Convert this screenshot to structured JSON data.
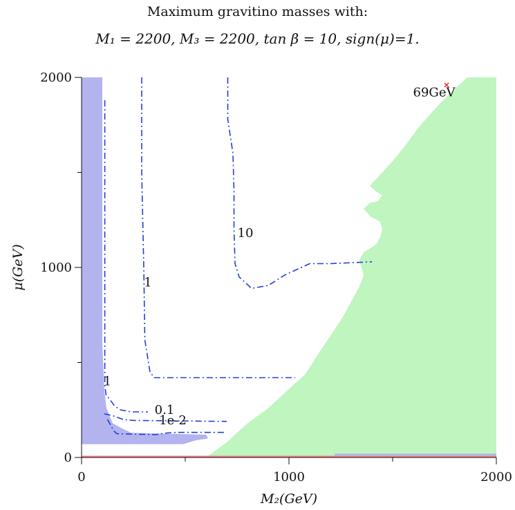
{
  "chart_data": {
    "type": "contour",
    "title": "Maximum gravitino masses with:",
    "subtitle": "M₁ = 2200, M₃ = 2200, tan β = 10, sign(μ)=1.",
    "xlabel": "M₂(GeV)",
    "ylabel": "μ(GeV)",
    "xlim": [
      0,
      2000
    ],
    "ylim": [
      0,
      2000
    ],
    "xticks": [
      "0",
      "1000",
      "2000"
    ],
    "yticks": [
      "0",
      "1000",
      "2000"
    ],
    "colors": {
      "green_region": "#bff5bf",
      "blue_region": "#b3b3f0",
      "contour": "#1f3fd6",
      "bottom_line": "#f08080",
      "marker": "#ff2020"
    },
    "regions": [
      {
        "fill": "green_region",
        "boundary": [
          [
            600,
            0
          ],
          [
            700,
            80
          ],
          [
            800,
            180
          ],
          [
            900,
            260
          ],
          [
            1000,
            360
          ],
          [
            1080,
            440
          ],
          [
            1150,
            560
          ],
          [
            1200,
            640
          ],
          [
            1260,
            740
          ],
          [
            1300,
            820
          ],
          [
            1340,
            900
          ],
          [
            1360,
            960
          ],
          [
            1340,
            1040
          ],
          [
            1360,
            1080
          ],
          [
            1390,
            1100
          ],
          [
            1420,
            1120
          ],
          [
            1440,
            1160
          ],
          [
            1450,
            1200
          ],
          [
            1440,
            1240
          ],
          [
            1390,
            1270
          ],
          [
            1360,
            1310
          ],
          [
            1390,
            1340
          ],
          [
            1430,
            1350
          ],
          [
            1450,
            1380
          ],
          [
            1420,
            1400
          ],
          [
            1390,
            1430
          ],
          [
            1450,
            1500
          ],
          [
            1500,
            1560
          ],
          [
            1560,
            1640
          ],
          [
            1620,
            1730
          ],
          [
            1700,
            1830
          ],
          [
            1780,
            1920
          ],
          [
            1860,
            2000
          ],
          [
            2000,
            2000
          ],
          [
            2000,
            0
          ]
        ]
      },
      {
        "fill": "green_region",
        "boundary": [
          [
            0,
            2000
          ],
          [
            0,
            350
          ],
          [
            20,
            340
          ],
          [
            20,
            2000
          ]
        ]
      },
      {
        "fill": "blue_region",
        "boundary": [
          [
            0,
            2000
          ],
          [
            100,
            2000
          ],
          [
            100,
            600
          ],
          [
            110,
            350
          ],
          [
            120,
            260
          ],
          [
            150,
            180
          ],
          [
            200,
            150
          ],
          [
            240,
            130
          ],
          [
            600,
            120
          ],
          [
            610,
            100
          ],
          [
            550,
            90
          ],
          [
            490,
            70
          ],
          [
            0,
            70
          ]
        ]
      },
      {
        "fill": "blue_region",
        "boundary": [
          [
            1220,
            10
          ],
          [
            2000,
            10
          ],
          [
            2000,
            20
          ],
          [
            1220,
            20
          ]
        ]
      }
    ],
    "contours": [
      {
        "level": "1",
        "points": [
          [
            112,
            1880
          ],
          [
            112,
            1000
          ],
          [
            112,
            380
          ],
          [
            118,
            330
          ],
          [
            140,
            300
          ],
          [
            160,
            270
          ],
          [
            190,
            250
          ],
          [
            240,
            240
          ],
          [
            320,
            240
          ]
        ],
        "label_at": [
          125,
          380
        ]
      },
      {
        "level": "0.1",
        "points": [
          [
            110,
            230
          ],
          [
            150,
            220
          ],
          [
            200,
            200
          ],
          [
            250,
            195
          ],
          [
            700,
            190
          ]
        ],
        "label_at": [
          400,
          230
        ]
      },
      {
        "level": "1e-2",
        "points": [
          [
            125,
            200
          ],
          [
            140,
            170
          ],
          [
            155,
            140
          ],
          [
            170,
            125
          ],
          [
            360,
            120
          ],
          [
            400,
            128
          ],
          [
            460,
            132
          ],
          [
            700,
            132
          ]
        ],
        "label_at": [
          440,
          175
        ]
      },
      {
        "level": "1",
        "points": [
          [
            290,
            2000
          ],
          [
            290,
            1500
          ],
          [
            300,
            1000
          ],
          [
            305,
            620
          ],
          [
            330,
            450
          ],
          [
            350,
            420
          ],
          [
            1030,
            420
          ]
        ],
        "label_at": [
          320,
          900
        ]
      },
      {
        "level": "10",
        "points": [
          [
            705,
            2000
          ],
          [
            705,
            1780
          ],
          [
            730,
            1600
          ],
          [
            735,
            1400
          ],
          [
            735,
            1200
          ],
          [
            740,
            1020
          ],
          [
            760,
            950
          ],
          [
            820,
            890
          ],
          [
            900,
            905
          ],
          [
            980,
            960
          ],
          [
            1100,
            1020
          ],
          [
            1200,
            1020
          ],
          [
            1400,
            1030
          ]
        ],
        "label_at": [
          790,
          1160
        ]
      }
    ],
    "annotations": [
      {
        "text": "69GeV",
        "x": 1700,
        "y": 1930
      }
    ],
    "markers": [
      {
        "x": 1760,
        "y": 1960,
        "symbol": "x"
      }
    ],
    "bottom_line_y": 0
  }
}
